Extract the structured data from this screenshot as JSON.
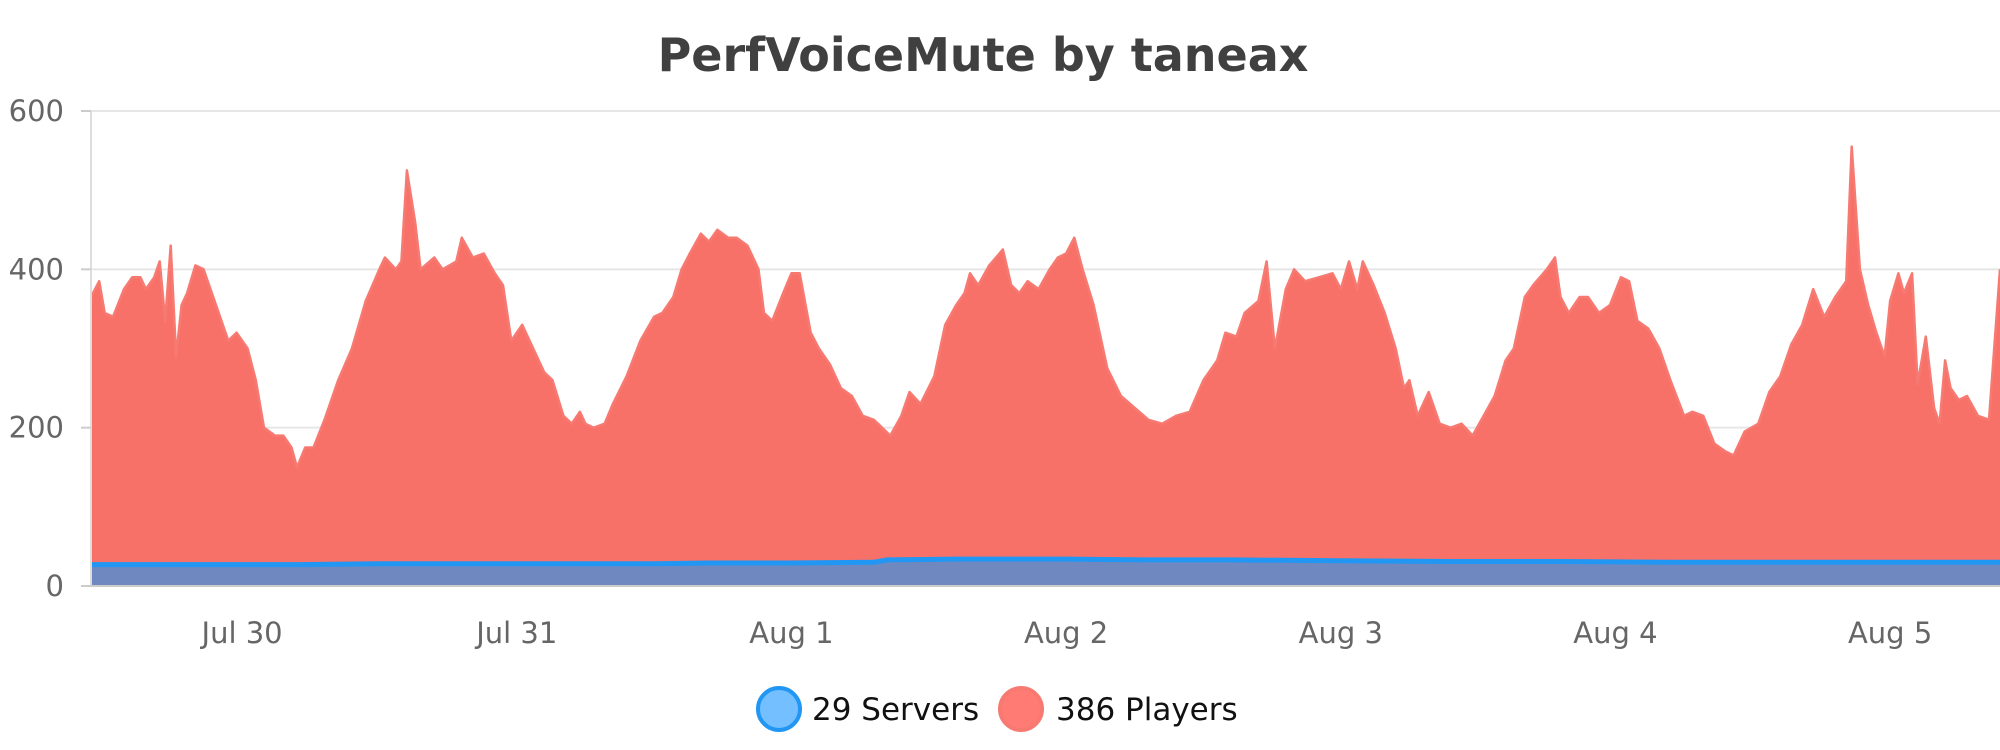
{
  "chart_data": {
    "type": "area",
    "title": "PerfVoiceMute by taneax",
    "xlabel": "",
    "ylabel": "",
    "ylim": [
      0,
      600
    ],
    "yticks": [
      0,
      200,
      400,
      600
    ],
    "xlim": [
      29.45,
      36.4
    ],
    "x_ticks": [
      {
        "x": 30,
        "label": "Jul 30"
      },
      {
        "x": 31,
        "label": "Jul 31"
      },
      {
        "x": 32,
        "label": "Aug 1"
      },
      {
        "x": 33,
        "label": "Aug 2"
      },
      {
        "x": 34,
        "label": "Aug 3"
      },
      {
        "x": 35,
        "label": "Aug 4"
      },
      {
        "x": 36,
        "label": "Aug 5"
      }
    ],
    "x_axis_note": "x values are days of a continuous Jul–Aug date axis (30 = Jul 30, 32 = Aug 1)",
    "grid": true,
    "legend_position": "bottom",
    "series": [
      {
        "name": "Servers",
        "legend_label": "29 Servers",
        "color": "#2196f3",
        "fill": "#6f88c0",
        "legend_fill": "#73bfff",
        "points": [
          [
            29.45,
            27
          ],
          [
            30.2,
            27
          ],
          [
            30.5,
            28
          ],
          [
            31.0,
            28
          ],
          [
            31.5,
            28
          ],
          [
            31.7,
            29
          ],
          [
            32.0,
            29
          ],
          [
            32.3,
            30
          ],
          [
            32.35,
            33
          ],
          [
            32.6,
            34
          ],
          [
            33.0,
            34
          ],
          [
            33.3,
            33
          ],
          [
            33.6,
            33
          ],
          [
            34.0,
            32
          ],
          [
            34.4,
            31
          ],
          [
            34.8,
            31
          ],
          [
            35.2,
            30
          ],
          [
            35.6,
            30
          ],
          [
            35.9,
            30
          ],
          [
            36.4,
            30
          ]
        ]
      },
      {
        "name": "Players",
        "legend_label": "386 Players",
        "color": "#f77a72",
        "fill": "#f77168",
        "legend_fill": "#ff7b73",
        "points": [
          [
            29.45,
            365
          ],
          [
            29.48,
            385
          ],
          [
            29.5,
            345
          ],
          [
            29.53,
            340
          ],
          [
            29.57,
            375
          ],
          [
            29.6,
            390
          ],
          [
            29.63,
            390
          ],
          [
            29.65,
            375
          ],
          [
            29.68,
            390
          ],
          [
            29.7,
            410
          ],
          [
            29.72,
            335
          ],
          [
            29.74,
            430
          ],
          [
            29.76,
            290
          ],
          [
            29.78,
            355
          ],
          [
            29.8,
            370
          ],
          [
            29.83,
            405
          ],
          [
            29.86,
            400
          ],
          [
            29.9,
            360
          ],
          [
            29.95,
            310
          ],
          [
            29.98,
            320
          ],
          [
            30.02,
            300
          ],
          [
            30.05,
            260
          ],
          [
            30.08,
            200
          ],
          [
            30.12,
            190
          ],
          [
            30.15,
            190
          ],
          [
            30.18,
            175
          ],
          [
            30.2,
            150
          ],
          [
            30.23,
            175
          ],
          [
            30.26,
            175
          ],
          [
            30.3,
            210
          ],
          [
            30.35,
            260
          ],
          [
            30.4,
            300
          ],
          [
            30.45,
            360
          ],
          [
            30.5,
            400
          ],
          [
            30.52,
            415
          ],
          [
            30.56,
            400
          ],
          [
            30.58,
            410
          ],
          [
            30.6,
            525
          ],
          [
            30.63,
            460
          ],
          [
            30.65,
            400
          ],
          [
            30.7,
            415
          ],
          [
            30.73,
            400
          ],
          [
            30.78,
            410
          ],
          [
            30.8,
            440
          ],
          [
            30.84,
            415
          ],
          [
            30.88,
            420
          ],
          [
            30.92,
            395
          ],
          [
            30.95,
            380
          ],
          [
            30.98,
            310
          ],
          [
            31.02,
            330
          ],
          [
            31.06,
            300
          ],
          [
            31.1,
            270
          ],
          [
            31.13,
            260
          ],
          [
            31.17,
            215
          ],
          [
            31.2,
            205
          ],
          [
            31.23,
            220
          ],
          [
            31.25,
            205
          ],
          [
            31.28,
            200
          ],
          [
            31.32,
            205
          ],
          [
            31.35,
            230
          ],
          [
            31.4,
            265
          ],
          [
            31.45,
            310
          ],
          [
            31.5,
            340
          ],
          [
            31.53,
            345
          ],
          [
            31.57,
            365
          ],
          [
            31.6,
            400
          ],
          [
            31.63,
            420
          ],
          [
            31.67,
            445
          ],
          [
            31.7,
            435
          ],
          [
            31.73,
            450
          ],
          [
            31.77,
            440
          ],
          [
            31.8,
            440
          ],
          [
            31.84,
            430
          ],
          [
            31.88,
            400
          ],
          [
            31.9,
            345
          ],
          [
            31.93,
            335
          ],
          [
            31.97,
            370
          ],
          [
            32.0,
            395
          ],
          [
            32.03,
            395
          ],
          [
            32.07,
            320
          ],
          [
            32.1,
            300
          ],
          [
            32.14,
            280
          ],
          [
            32.18,
            250
          ],
          [
            32.22,
            240
          ],
          [
            32.26,
            215
          ],
          [
            32.3,
            210
          ],
          [
            32.33,
            200
          ],
          [
            32.36,
            190
          ],
          [
            32.4,
            215
          ],
          [
            32.43,
            245
          ],
          [
            32.47,
            230
          ],
          [
            32.52,
            265
          ],
          [
            32.56,
            330
          ],
          [
            32.6,
            355
          ],
          [
            32.63,
            370
          ],
          [
            32.65,
            395
          ],
          [
            32.68,
            380
          ],
          [
            32.72,
            405
          ],
          [
            32.77,
            425
          ],
          [
            32.8,
            380
          ],
          [
            32.83,
            370
          ],
          [
            32.86,
            385
          ],
          [
            32.9,
            375
          ],
          [
            32.94,
            400
          ],
          [
            32.97,
            415
          ],
          [
            33.0,
            420
          ],
          [
            33.03,
            440
          ],
          [
            33.06,
            400
          ],
          [
            33.1,
            355
          ],
          [
            33.15,
            275
          ],
          [
            33.2,
            240
          ],
          [
            33.25,
            225
          ],
          [
            33.3,
            210
          ],
          [
            33.35,
            205
          ],
          [
            33.4,
            215
          ],
          [
            33.45,
            220
          ],
          [
            33.5,
            260
          ],
          [
            33.55,
            285
          ],
          [
            33.58,
            320
          ],
          [
            33.62,
            315
          ],
          [
            33.65,
            345
          ],
          [
            33.7,
            360
          ],
          [
            33.73,
            410
          ],
          [
            33.76,
            300
          ],
          [
            33.8,
            375
          ],
          [
            33.83,
            400
          ],
          [
            33.87,
            385
          ],
          [
            33.92,
            390
          ],
          [
            33.97,
            395
          ],
          [
            34.0,
            375
          ],
          [
            34.03,
            410
          ],
          [
            34.06,
            375
          ],
          [
            34.08,
            410
          ],
          [
            34.12,
            380
          ],
          [
            34.16,
            345
          ],
          [
            34.2,
            300
          ],
          [
            34.23,
            250
          ],
          [
            34.25,
            260
          ],
          [
            34.28,
            215
          ],
          [
            34.32,
            245
          ],
          [
            34.36,
            205
          ],
          [
            34.4,
            200
          ],
          [
            34.44,
            205
          ],
          [
            34.48,
            190
          ],
          [
            34.52,
            215
          ],
          [
            34.56,
            240
          ],
          [
            34.6,
            285
          ],
          [
            34.63,
            300
          ],
          [
            34.67,
            365
          ],
          [
            34.7,
            380
          ],
          [
            34.75,
            400
          ],
          [
            34.78,
            415
          ],
          [
            34.8,
            365
          ],
          [
            34.83,
            345
          ],
          [
            34.87,
            365
          ],
          [
            34.9,
            365
          ],
          [
            34.94,
            345
          ],
          [
            34.98,
            355
          ],
          [
            35.02,
            390
          ],
          [
            35.05,
            385
          ],
          [
            35.08,
            335
          ],
          [
            35.12,
            325
          ],
          [
            35.16,
            300
          ],
          [
            35.2,
            260
          ],
          [
            35.25,
            215
          ],
          [
            35.28,
            220
          ],
          [
            35.32,
            215
          ],
          [
            35.36,
            180
          ],
          [
            35.4,
            170
          ],
          [
            35.43,
            165
          ],
          [
            35.47,
            195
          ],
          [
            35.52,
            205
          ],
          [
            35.56,
            245
          ],
          [
            35.6,
            265
          ],
          [
            35.64,
            305
          ],
          [
            35.68,
            330
          ],
          [
            35.72,
            375
          ],
          [
            35.76,
            340
          ],
          [
            35.8,
            365
          ],
          [
            35.84,
            385
          ],
          [
            35.86,
            555
          ],
          [
            35.89,
            400
          ],
          [
            35.92,
            355
          ],
          [
            35.95,
            320
          ],
          [
            35.98,
            290
          ],
          [
            36.0,
            360
          ],
          [
            36.03,
            395
          ],
          [
            36.05,
            370
          ],
          [
            36.08,
            395
          ],
          [
            36.1,
            255
          ],
          [
            36.13,
            315
          ],
          [
            36.16,
            225
          ],
          [
            36.18,
            205
          ],
          [
            36.2,
            285
          ],
          [
            36.22,
            250
          ],
          [
            36.25,
            235
          ],
          [
            36.28,
            240
          ],
          [
            36.32,
            215
          ],
          [
            36.36,
            210
          ],
          [
            36.4,
            400
          ]
        ]
      }
    ]
  }
}
